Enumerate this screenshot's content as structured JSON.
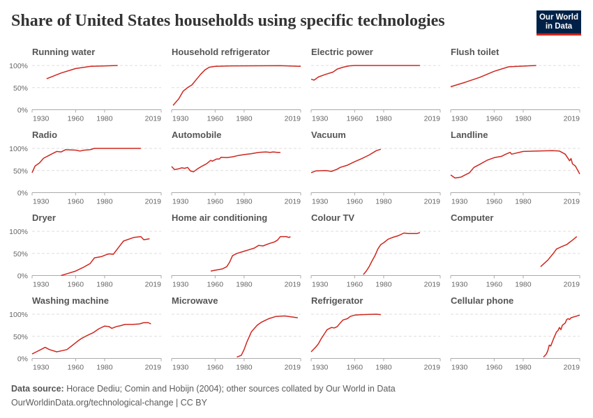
{
  "title": "Share of United States households using specific technologies",
  "logo": {
    "line1": "Our World",
    "line2": "in Data",
    "bg": "#002147",
    "accent": "#ce261e"
  },
  "footer": {
    "source_label": "Data source:",
    "source_text": "Horace Dediu; Comin and Hobijn (2004); other sources collated by Our World in Data",
    "url_license": "OurWorldinData.org/technological-change | CC BY"
  },
  "chart_data": {
    "type": "line",
    "layout": "small-multiples 4x4",
    "line_color": "#ce261e",
    "xlim": [
      1930,
      2019
    ],
    "ylim": [
      0,
      100
    ],
    "x_ticks": [
      "1930",
      "1960",
      "1980",
      "2019"
    ],
    "y_ticks": [
      "0%",
      "50%",
      "100%"
    ],
    "grid": "dashed at 50% and 100%",
    "panels": [
      {
        "title": "Running water",
        "x": [
          1940,
          1950,
          1960,
          1970,
          1980,
          1989
        ],
        "y": [
          70,
          83,
          93,
          98,
          99,
          100
        ]
      },
      {
        "title": "Household refrigerator",
        "x": [
          1931,
          1935,
          1938,
          1941,
          1944,
          1947,
          1950,
          1953,
          1956,
          1960,
          1970,
          2005,
          2019
        ],
        "y": [
          10,
          25,
          42,
          50,
          56,
          68,
          80,
          90,
          96,
          98,
          99,
          99.5,
          98
        ]
      },
      {
        "title": "Electric power",
        "x": [
          1930,
          1932,
          1935,
          1940,
          1945,
          1948,
          1952,
          1956,
          1960,
          2005
        ],
        "y": [
          69,
          67,
          74,
          80,
          85,
          92,
          96,
          99,
          100,
          100
        ]
      },
      {
        "title": "Flush toilet",
        "x": [
          1930,
          1940,
          1950,
          1960,
          1970,
          1989
        ],
        "y": [
          52,
          62,
          73,
          87,
          97,
          100
        ]
      },
      {
        "title": "Radio",
        "x": [
          1930,
          1932,
          1935,
          1938,
          1941,
          1944,
          1947,
          1950,
          1953,
          1960,
          1963,
          1966,
          1970,
          1973,
          2005
        ],
        "y": [
          45,
          60,
          67,
          78,
          83,
          88,
          93,
          92,
          97,
          96,
          94,
          96,
          97,
          100,
          100
        ]
      },
      {
        "title": "Automobile",
        "x": [
          1930,
          1932,
          1935,
          1937,
          1939,
          1941,
          1943,
          1945,
          1948,
          1951,
          1954,
          1957,
          1958,
          1961,
          1963,
          1964,
          1968,
          1972,
          1976,
          1980,
          1985,
          1990,
          1995,
          1998,
          2000,
          2003,
          2005
        ],
        "y": [
          59,
          52,
          54,
          56,
          55,
          57,
          49,
          47,
          54,
          60,
          65,
          73,
          71,
          76,
          76,
          80,
          79,
          81,
          84,
          86,
          88,
          91,
          92,
          91,
          92,
          91,
          91
        ]
      },
      {
        "title": "Vacuum",
        "x": [
          1930,
          1933,
          1940,
          1944,
          1948,
          1950,
          1955,
          1960,
          1965,
          1970,
          1975,
          1978
        ],
        "y": [
          45,
          49,
          50,
          48,
          53,
          57,
          62,
          70,
          77,
          85,
          95,
          98
        ]
      },
      {
        "title": "Landline",
        "x": [
          1930,
          1933,
          1937,
          1940,
          1943,
          1946,
          1950,
          1955,
          1960,
          1965,
          1968,
          1971,
          1972,
          1980,
          1990,
          2000,
          2005,
          2009,
          2011,
          2012,
          2013,
          2014,
          2016,
          2019
        ],
        "y": [
          40,
          33,
          35,
          40,
          45,
          57,
          64,
          73,
          79,
          82,
          87,
          91,
          87,
          93,
          94,
          95,
          94,
          87,
          77,
          72,
          77,
          65,
          60,
          42
        ]
      },
      {
        "title": "Dryer",
        "x": [
          1950,
          1955,
          1960,
          1965,
          1970,
          1973,
          1978,
          1981,
          1983,
          1986,
          1990,
          1993,
          2000,
          2005,
          2007,
          2011
        ],
        "y": [
          0,
          5,
          10,
          18,
          27,
          40,
          43,
          47,
          49,
          48,
          65,
          78,
          86,
          88,
          81,
          83
        ]
      },
      {
        "title": "Home air conditioning",
        "x": [
          1957,
          1960,
          1965,
          1968,
          1970,
          1972,
          1975,
          1980,
          1983,
          1987,
          1990,
          1993,
          1997,
          2001,
          2003,
          2005,
          2009,
          2011,
          2012
        ],
        "y": [
          10,
          12,
          15,
          20,
          30,
          45,
          50,
          55,
          58,
          62,
          68,
          67,
          72,
          76,
          80,
          88,
          88,
          86,
          88
        ]
      },
      {
        "title": "Colour TV",
        "x": [
          1966,
          1968,
          1970,
          1972,
          1974,
          1976,
          1978,
          1980,
          1983,
          1986,
          1990,
          1994,
          1997,
          2000,
          2003,
          2005
        ],
        "y": [
          2,
          10,
          20,
          33,
          45,
          60,
          70,
          74,
          82,
          86,
          90,
          96,
          95,
          95,
          95,
          97
        ]
      },
      {
        "title": "Computer",
        "x": [
          1992,
          1997,
          2001,
          2003,
          2007,
          2010,
          2012,
          2014,
          2017
        ],
        "y": [
          20,
          35,
          51,
          60,
          66,
          70,
          75,
          80,
          88
        ]
      },
      {
        "title": "Washing machine",
        "x": [
          1930,
          1933,
          1936,
          1939,
          1942,
          1947,
          1950,
          1954,
          1958,
          1961,
          1964,
          1968,
          1972,
          1976,
          1980,
          1983,
          1985,
          1988,
          1991,
          1994,
          2000,
          2004,
          2007,
          2010,
          2012
        ],
        "y": [
          10,
          15,
          20,
          25,
          20,
          15,
          17,
          20,
          30,
          38,
          45,
          52,
          58,
          67,
          73,
          72,
          68,
          72,
          74,
          77,
          77,
          78,
          81,
          81,
          78
        ]
      },
      {
        "title": "Microwave",
        "x": [
          1975,
          1978,
          1980,
          1982,
          1985,
          1989,
          1992,
          1997,
          2002,
          2008,
          2017
        ],
        "y": [
          3,
          7,
          20,
          38,
          60,
          75,
          82,
          90,
          95,
          96,
          92
        ]
      },
      {
        "title": "Refrigerator",
        "x": [
          1930,
          1933,
          1935,
          1937,
          1939,
          1941,
          1944,
          1946,
          1948,
          1950,
          1952,
          1955,
          1957,
          1960,
          1965,
          1975,
          1978
        ],
        "y": [
          15,
          25,
          33,
          45,
          55,
          65,
          70,
          69,
          72,
          80,
          87,
          90,
          95,
          98,
          99,
          100,
          99
        ]
      },
      {
        "title": "Cellular phone",
        "x": [
          1994,
          1996,
          1997,
          1998,
          1999,
          2001,
          2003,
          2004,
          2005,
          2006,
          2007,
          2009,
          2010,
          2011,
          2012,
          2013,
          2019
        ],
        "y": [
          3,
          10,
          18,
          30,
          28,
          45,
          60,
          63,
          70,
          65,
          75,
          80,
          88,
          90,
          88,
          92,
          98
        ]
      }
    ]
  }
}
